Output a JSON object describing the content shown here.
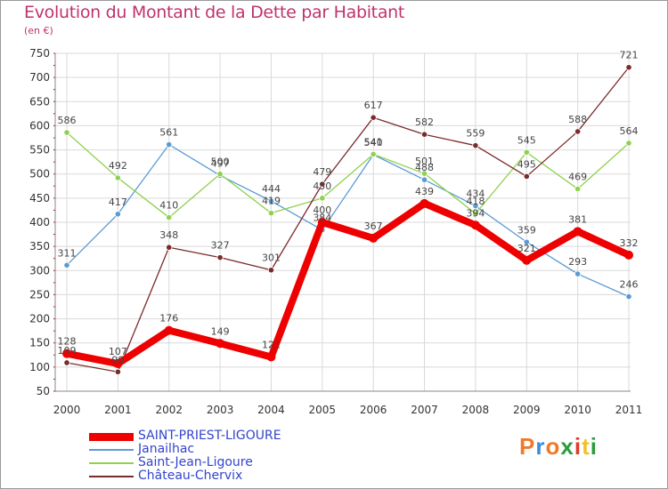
{
  "title": "Evolution du Montant de la Dette par Habitant",
  "unit": "(en €)",
  "logo": {
    "text": "Proxiti",
    "colors": [
      "#f07a2a",
      "#3a8dd8",
      "#f07a2a",
      "#2a9d3a",
      "#e03a2a",
      "#f2c02a",
      "#2a9d3a"
    ]
  },
  "chart_data": {
    "type": "line",
    "x": [
      "2000",
      "2001",
      "2002",
      "2003",
      "2004",
      "2005",
      "2006",
      "2007",
      "2008",
      "2009",
      "2010",
      "2011"
    ],
    "ylim": [
      50,
      750
    ],
    "yticks": [
      "50",
      "100",
      "150",
      "200",
      "250",
      "300",
      "350",
      "400",
      "450",
      "500",
      "550",
      "600",
      "650",
      "700",
      "750"
    ],
    "grid": true,
    "legend_position": "bottom",
    "series": [
      {
        "name": "SAINT-PRIEST-LIGOURE",
        "color": "#ee0000",
        "values": [
          128,
          107,
          176,
          149,
          121,
          400,
          367,
          439,
          394,
          321,
          381,
          332
        ],
        "labels": [
          "128",
          "107",
          "176",
          "149",
          "121",
          "400",
          "367",
          "439",
          "394",
          "321",
          "381",
          "332"
        ],
        "emphasis": true
      },
      {
        "name": "Janailhac",
        "color": "#5b9bd5",
        "values": [
          311,
          417,
          561,
          497,
          444,
          384,
          540,
          488,
          434,
          359,
          293,
          246
        ],
        "labels": [
          "311",
          "417",
          "561",
          "497",
          "444",
          "384",
          "540",
          "488",
          "434",
          "359",
          "293",
          "246"
        ]
      },
      {
        "name": "Saint-Jean-Ligoure",
        "color": "#8fd14f",
        "values": [
          586,
          492,
          410,
          500,
          419,
          450,
          541,
          501,
          418,
          545,
          469,
          564
        ],
        "labels": [
          "586",
          "492",
          "410",
          "500",
          "419",
          "450",
          "541",
          "501",
          "418",
          "545",
          "469",
          "564"
        ]
      },
      {
        "name": "Château-Chervix",
        "color": "#7b2a2a",
        "values": [
          109,
          90,
          348,
          327,
          301,
          479,
          617,
          582,
          559,
          495,
          588,
          721
        ],
        "labels": [
          "109",
          "90",
          "348",
          "327",
          "301",
          "479",
          "617",
          "582",
          "559",
          "495",
          "588",
          "721"
        ]
      }
    ]
  }
}
